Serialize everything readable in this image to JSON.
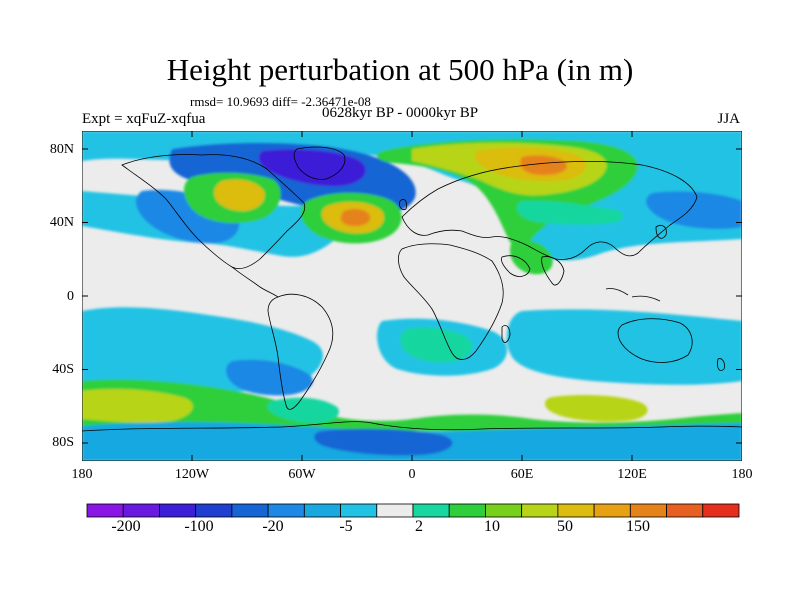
{
  "title": "Height perturbation at 500 hPa (in m)",
  "stats_text": "rmsd= 10.9693 diff= -2.36471e-08",
  "period_text": "0628kyr BP - 0000kyr BP",
  "expt_text": "Expt = xqFuZ-xqfua",
  "season_text": "JJA",
  "axes": {
    "y_ticks": [
      "80N",
      "40N",
      "0",
      "40S",
      "80S"
    ],
    "x_ticks": [
      "180",
      "120W",
      "60W",
      "0",
      "60E",
      "120E",
      "180"
    ]
  },
  "colorbar": {
    "labels": [
      "-200",
      "-100",
      "-20",
      "-5",
      "2",
      "10",
      "50",
      "150"
    ],
    "colors": [
      "#8a16e6",
      "#6a1ae0",
      "#3d1fd8",
      "#1e3fd0",
      "#1565d4",
      "#1e88e5",
      "#19a8e0",
      "#22c2e4",
      "#ececec",
      "#18d6a0",
      "#2fcf3b",
      "#77d11c",
      "#b8d419",
      "#dcbc10",
      "#e6a214",
      "#e6821a",
      "#e85f22",
      "#e62e1d"
    ]
  },
  "map_colors": {
    "ocean_neutral": "#ececec",
    "light_blue": "#22c2e4",
    "cyan_blue": "#19a8e0",
    "mid_blue": "#1e88e5",
    "blue": "#1565d4",
    "dark_blue": "#3d1fd8",
    "green_teal": "#18d6a0",
    "green": "#2fcf3b",
    "yellow_green": "#b8d419",
    "yellow": "#dcbc10",
    "orange": "#e6821a",
    "coast": "#000000"
  }
}
